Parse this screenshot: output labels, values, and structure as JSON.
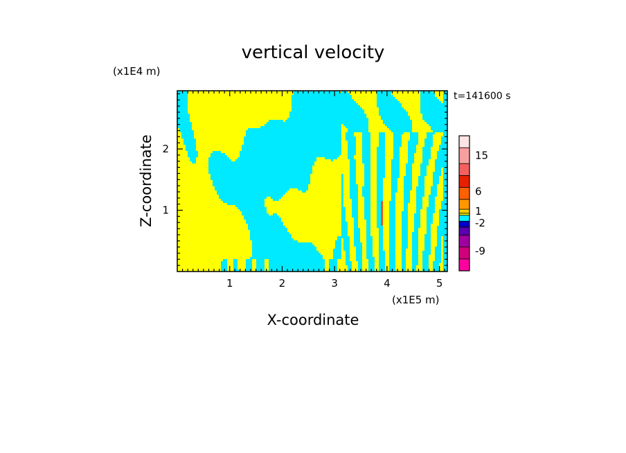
{
  "chart_data": {
    "type": "heatmap",
    "title": "vertical velocity",
    "xlabel": "X-coordinate",
    "ylabel": "Z-coordinate",
    "x_unit": "(x1E5 m)",
    "y_unit": "(x1E4 m)",
    "time_label": "t=141600 s",
    "xlim": [
      0,
      5.15
    ],
    "ylim": [
      0,
      2.95
    ],
    "x_ticks": [
      1,
      2,
      3,
      4,
      5
    ],
    "y_ticks": [
      1,
      2
    ],
    "x_tick_labels": [
      "1",
      "2",
      "3",
      "4",
      "5"
    ],
    "y_tick_labels": [
      "1",
      "2"
    ],
    "colorbar": {
      "levels": [
        {
          "color": "#ff00a0"
        },
        {
          "color": "#d0007a"
        },
        {
          "color": "#a000a0"
        },
        {
          "color": "#5a00b0"
        },
        {
          "color": "#0000c8"
        },
        {
          "color": "#00f0ff"
        },
        {
          "color": "#ffff00"
        },
        {
          "color": "#ffd000"
        },
        {
          "color": "#ff9800"
        },
        {
          "color": "#ff6000"
        },
        {
          "color": "#e82000"
        },
        {
          "color": "#f46060"
        },
        {
          "color": "#f8a0a0"
        },
        {
          "color": "#fde4e4"
        }
      ],
      "labels": [
        {
          "text": "15",
          "value": 15
        },
        {
          "text": "6",
          "value": 6
        },
        {
          "text": "1",
          "value": 1
        },
        {
          "text": "-2",
          "value": -2
        },
        {
          "text": "-9",
          "value": -9
        }
      ]
    },
    "field_colors": {
      "positive": "#ffff00",
      "negative": "#00eaff",
      "strong": "#ff4000"
    }
  }
}
